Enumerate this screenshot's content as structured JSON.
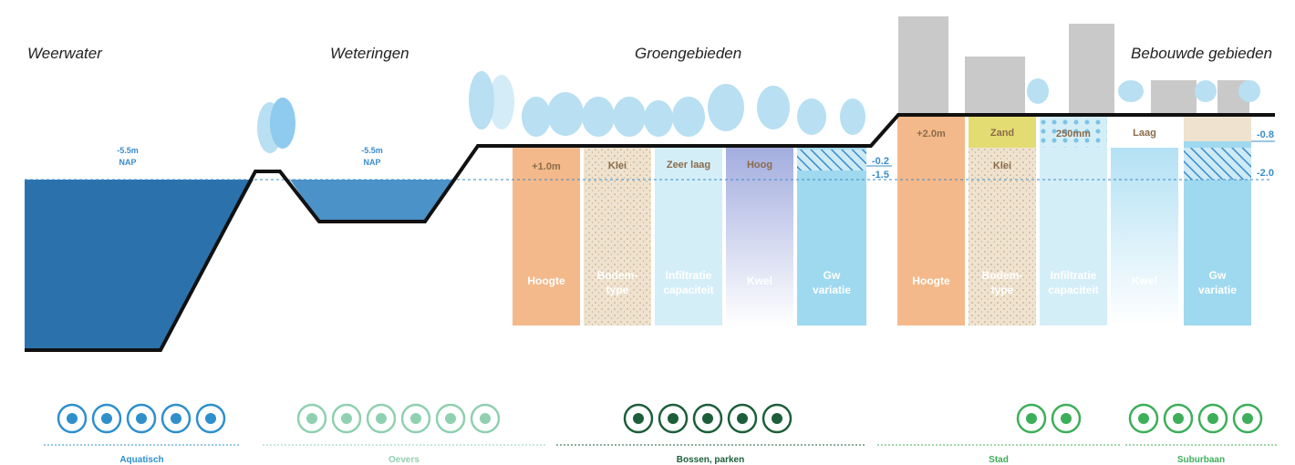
{
  "sections": [
    "Weerwater",
    "Weteringen",
    "Groengebieden",
    "Bebouwde gebieden"
  ],
  "water_levels": [
    {
      "value": "-5.5m",
      "ref": "NAP"
    },
    {
      "value": "-5.5m",
      "ref": "NAP"
    }
  ],
  "groen": {
    "tops": [
      "+1.0m",
      "Klei",
      "Zeer laag",
      "Hoog"
    ],
    "columns": [
      [
        "Hoogte"
      ],
      [
        "Bodem-",
        "type"
      ],
      [
        "Infiltratie",
        "capaciteit"
      ],
      [
        "Kwel"
      ],
      [
        "Gw",
        "variatie"
      ]
    ],
    "levels": [
      "-0.2",
      "-1.5"
    ]
  },
  "bebouwd": {
    "tops": [
      "+2.0m",
      "Zand",
      "Klei",
      "250mm",
      "Laag"
    ],
    "columns": [
      [
        "Hoogte"
      ],
      [
        "Bodem-",
        "type"
      ],
      [
        "Infiltratie",
        "capaciteit"
      ],
      [
        "Kwel"
      ],
      [
        "Gw",
        "variatie"
      ]
    ],
    "levels": [
      "-0.8",
      "-2.0"
    ]
  },
  "habitats": [
    "Aquatisch",
    "Oevers",
    "Bossen, parken",
    "Stad",
    "Suburbaan"
  ]
}
